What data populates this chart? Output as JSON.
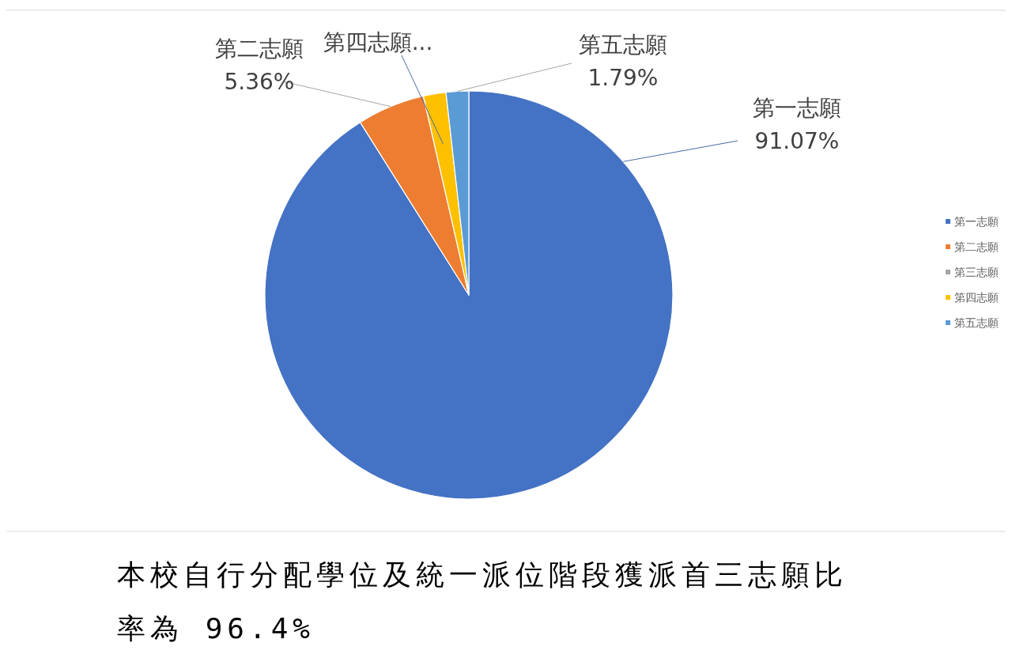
{
  "chart_data": {
    "type": "pie",
    "title": "本校自行分配學位及統一派位階段獲派首三志願比率為 96.4%",
    "categories": [
      "第一志願",
      "第二志願",
      "第三志願",
      "第四志願",
      "第五志願"
    ],
    "values": [
      91.07,
      5.36,
      0,
      1.79,
      1.79
    ],
    "colors": [
      "#4472c4",
      "#ed7d31",
      "#a5a5a5",
      "#ffc000",
      "#5b9bd5"
    ],
    "value_labels": [
      "91.07%",
      "5.36%",
      null,
      null,
      "1.79%"
    ],
    "annotations": [
      {
        "text": "第四志願...",
        "x": "第四志願"
      }
    ],
    "legend": "right"
  }
}
